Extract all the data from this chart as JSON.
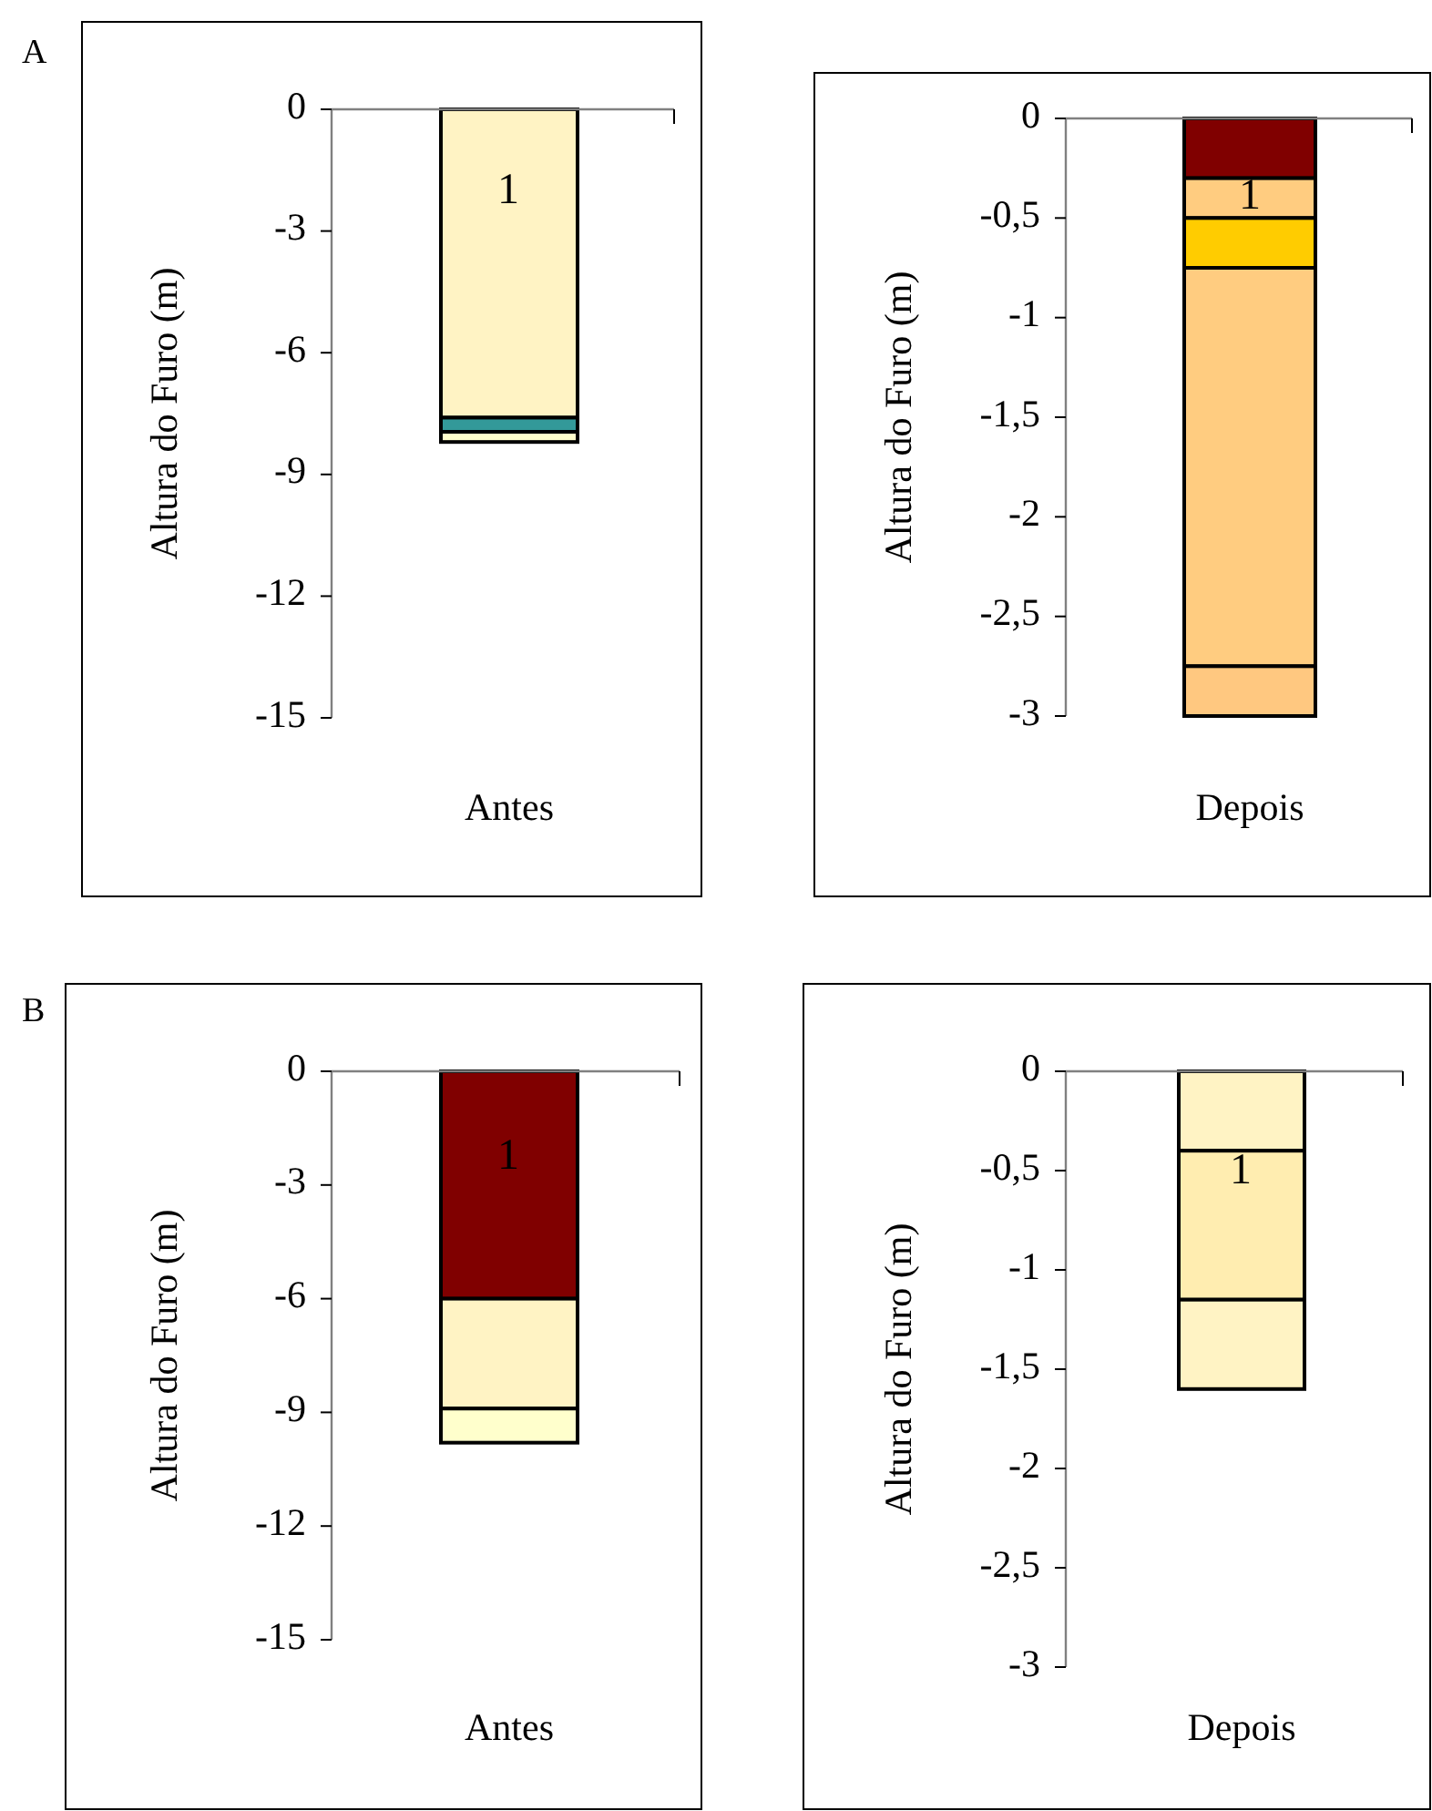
{
  "chart_data": [
    {
      "type": "bar",
      "stacked": true,
      "ylabel": "Altura do Furo (m)",
      "categories": [
        "Antes"
      ],
      "ylim": [
        -15,
        0
      ],
      "yticks": [
        0,
        -3,
        -6,
        -9,
        -12,
        -15
      ],
      "annotations": [
        "A",
        "1"
      ],
      "series": [
        {
          "color": "#fff3c4",
          "values": [
            -7.6
          ]
        },
        {
          "color": "#339999",
          "values": [
            -0.35
          ]
        },
        {
          "color": "#ffffcc",
          "values": [
            -0.25
          ]
        }
      ]
    },
    {
      "type": "bar",
      "stacked": true,
      "ylabel": "Altura do Furo (m)",
      "categories": [
        "Depois"
      ],
      "ylim": [
        -3,
        0
      ],
      "yticks": [
        0,
        {
          "value": -0.5,
          "label": "-0,5"
        },
        -1,
        {
          "value": -1.5,
          "label": "-1,5"
        },
        -2,
        {
          "value": -2.5,
          "label": "-2,5"
        },
        -3
      ],
      "annotations": [
        "1"
      ],
      "series": [
        {
          "color": "#800000",
          "values": [
            -0.3
          ]
        },
        {
          "color": "#ffcc80",
          "values": [
            -0.2
          ]
        },
        {
          "color": "#ffcc00",
          "values": [
            -0.25
          ]
        },
        {
          "color": "#ffcc80",
          "values": [
            -2.0
          ]
        },
        {
          "color": "#ffc880",
          "values": [
            -0.25
          ]
        }
      ]
    },
    {
      "type": "bar",
      "stacked": true,
      "ylabel": "Altura do Furo (m)",
      "categories": [
        "Antes"
      ],
      "ylim": [
        -15,
        0
      ],
      "yticks": [
        0,
        -3,
        -6,
        -9,
        -12,
        -15
      ],
      "annotations": [
        "B",
        "1"
      ],
      "series": [
        {
          "color": "#800000",
          "values": [
            -6
          ]
        },
        {
          "color": "#fff3c4",
          "values": [
            -2.9
          ]
        },
        {
          "color": "#ffffcc",
          "values": [
            -0.9
          ]
        }
      ]
    },
    {
      "type": "bar",
      "stacked": true,
      "ylabel": "Altura do Furo (m)",
      "categories": [
        "Depois"
      ],
      "ylim": [
        -3,
        0
      ],
      "yticks": [
        0,
        {
          "value": -0.5,
          "label": "-0,5"
        },
        -1,
        {
          "value": -1.5,
          "label": "-1,5"
        },
        -2,
        {
          "value": -2.5,
          "label": "-2,5"
        },
        -3
      ],
      "annotations": [
        "1"
      ],
      "series": [
        {
          "color": "#fff3c4",
          "values": [
            -0.4
          ]
        },
        {
          "color": "#ffedb0",
          "values": [
            -0.75
          ]
        },
        {
          "color": "#fff3c4",
          "values": [
            -0.45
          ]
        }
      ]
    }
  ]
}
